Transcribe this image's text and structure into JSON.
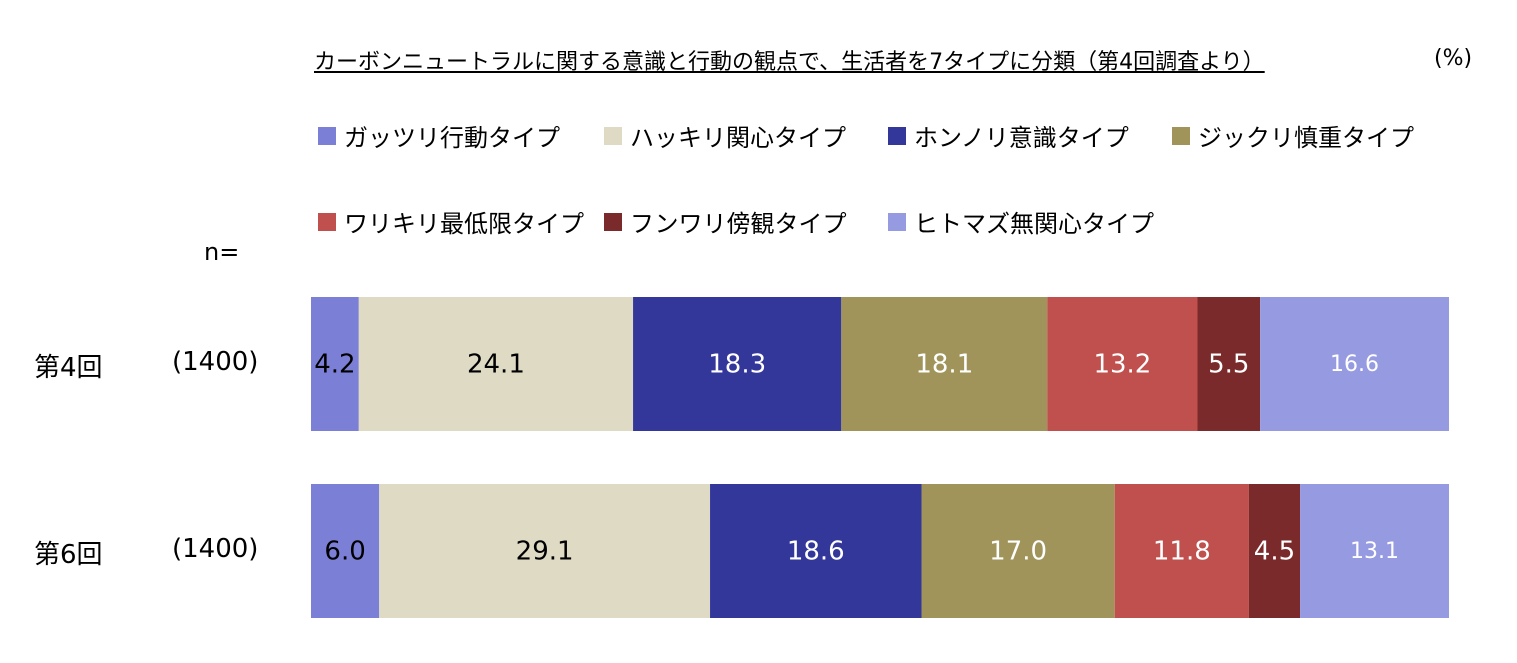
{
  "title": "カーボンニュートラルに関する意識と行動の観点で、生活者を7タイプに分類（第4回調査より）",
  "unit": "(%)",
  "n_label": "n=",
  "chart_data": {
    "type": "bar",
    "orientation": "horizontal-stacked-100",
    "categories": [
      "第4回",
      "第6回"
    ],
    "sample_sizes": [
      "(1400)",
      "(1400)"
    ],
    "series": [
      {
        "name": "ガッツリ行動タイプ",
        "color": "#7B7FD6",
        "label_color": "#000000",
        "values": [
          4.2,
          6.0
        ]
      },
      {
        "name": "ハッキリ関心タイプ",
        "color": "#DEDAC4",
        "label_color": "#000000",
        "values": [
          24.1,
          29.1
        ]
      },
      {
        "name": "ホンノリ意識タイプ",
        "color": "#33379A",
        "label_color": "#FFFFFF",
        "values": [
          18.3,
          18.6
        ]
      },
      {
        "name": "ジックリ慎重タイプ",
        "color": "#A0945A",
        "label_color": "#FFFFFF",
        "values": [
          18.1,
          17.0
        ]
      },
      {
        "name": "ワリキリ最低限タイプ",
        "color": "#C0504D",
        "label_color": "#FFFFFF",
        "values": [
          13.2,
          11.8
        ]
      },
      {
        "name": "フンワリ傍観タイプ",
        "color": "#7A2A2A",
        "label_color": "#FFFFFF",
        "values": [
          5.5,
          4.5
        ]
      },
      {
        "name": "ヒトマズ無関心タイプ",
        "color": "#969AE0",
        "label_color": "#FFFFFF",
        "values": [
          16.6,
          13.1
        ]
      }
    ],
    "value_labels": [
      [
        "4.2",
        "24.1",
        "18.3",
        "18.1",
        "13.2",
        "5.5",
        "16.6"
      ],
      [
        "6.0",
        "29.1",
        "18.6",
        "17.0",
        "11.8",
        "4.5",
        "13.1"
      ]
    ],
    "xlim": [
      0,
      100
    ],
    "legend_position": "top"
  }
}
